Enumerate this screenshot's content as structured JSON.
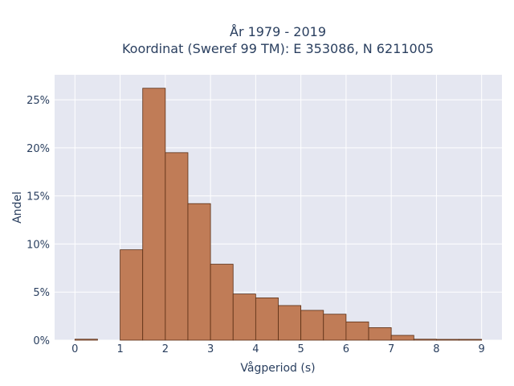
{
  "chart_data": {
    "type": "bar",
    "title_line1": "År 1979 - 2019",
    "title_line2": "Koordinat (Sweref 99 TM): E 353086, N 6211005",
    "xlabel": "Vågperiod (s)",
    "ylabel": "Andel",
    "bin_width": 0.5,
    "bins": [
      {
        "x0": 0.0,
        "value": 0.1
      },
      {
        "x0": 0.5,
        "value": 0.0
      },
      {
        "x0": 1.0,
        "value": 9.4
      },
      {
        "x0": 1.5,
        "value": 26.2
      },
      {
        "x0": 2.0,
        "value": 19.5
      },
      {
        "x0": 2.5,
        "value": 14.2
      },
      {
        "x0": 3.0,
        "value": 7.9
      },
      {
        "x0": 3.5,
        "value": 4.8
      },
      {
        "x0": 4.0,
        "value": 4.4
      },
      {
        "x0": 4.5,
        "value": 3.6
      },
      {
        "x0": 5.0,
        "value": 3.1
      },
      {
        "x0": 5.5,
        "value": 2.7
      },
      {
        "x0": 6.0,
        "value": 1.9
      },
      {
        "x0": 6.5,
        "value": 1.3
      },
      {
        "x0": 7.0,
        "value": 0.5
      },
      {
        "x0": 7.5,
        "value": 0.1
      },
      {
        "x0": 8.0,
        "value": 0.05
      },
      {
        "x0": 8.5,
        "value": 0.05
      }
    ],
    "xlim": [
      -0.45,
      9.45
    ],
    "ylim": [
      0,
      27.6
    ],
    "x_ticks": [
      "0",
      "1",
      "2",
      "3",
      "4",
      "5",
      "6",
      "7",
      "8",
      "9"
    ],
    "y_ticks": [
      "0%",
      "5%",
      "10%",
      "15%",
      "20%",
      "25%"
    ],
    "grid": true,
    "colors": {
      "bar_fill": "#c07c57",
      "bar_stroke": "#5a2e14",
      "plot_bg": "#e5e7f1",
      "grid": "#ffffff",
      "text": "#2a3f5f"
    }
  }
}
